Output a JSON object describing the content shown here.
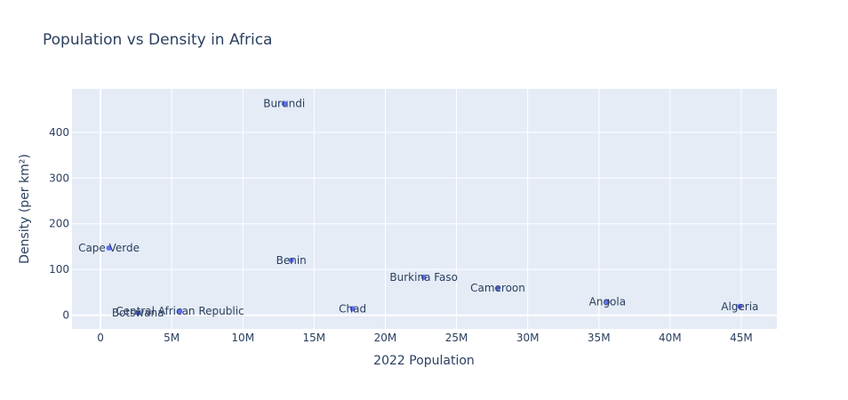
{
  "chart_data": {
    "type": "scatter",
    "title": "Population vs Density in Africa",
    "xlabel": "2022 Population",
    "ylabel": "Density (per km²)",
    "xlim": [
      -2000000,
      47500000
    ],
    "ylim": [
      -30,
      495
    ],
    "x_ticks": [
      0,
      5000000,
      10000000,
      15000000,
      20000000,
      25000000,
      30000000,
      35000000,
      40000000,
      45000000
    ],
    "x_tick_labels": [
      "0",
      "5M",
      "10M",
      "15M",
      "20M",
      "25M",
      "30M",
      "35M",
      "40M",
      "45M"
    ],
    "y_ticks": [
      0,
      100,
      200,
      300,
      400
    ],
    "y_tick_labels": [
      "0",
      "100",
      "200",
      "300",
      "400"
    ],
    "grid": true,
    "marker_color": "#636efa",
    "plot_bg": "#e5ecf6",
    "points": [
      {
        "label": "Algeria",
        "x": 44900000,
        "y": 19
      },
      {
        "label": "Angola",
        "x": 35600000,
        "y": 29
      },
      {
        "label": "Benin",
        "x": 13400000,
        "y": 120
      },
      {
        "label": "Botswana",
        "x": 2630000,
        "y": 5
      },
      {
        "label": "Burkina Faso",
        "x": 22700000,
        "y": 83
      },
      {
        "label": "Burundi",
        "x": 12900000,
        "y": 463
      },
      {
        "label": "Cape Verde",
        "x": 593000,
        "y": 147
      },
      {
        "label": "Cameroon",
        "x": 27900000,
        "y": 59
      },
      {
        "label": "Central African Republic",
        "x": 5580000,
        "y": 9
      },
      {
        "label": "Chad",
        "x": 17700000,
        "y": 14
      }
    ]
  }
}
